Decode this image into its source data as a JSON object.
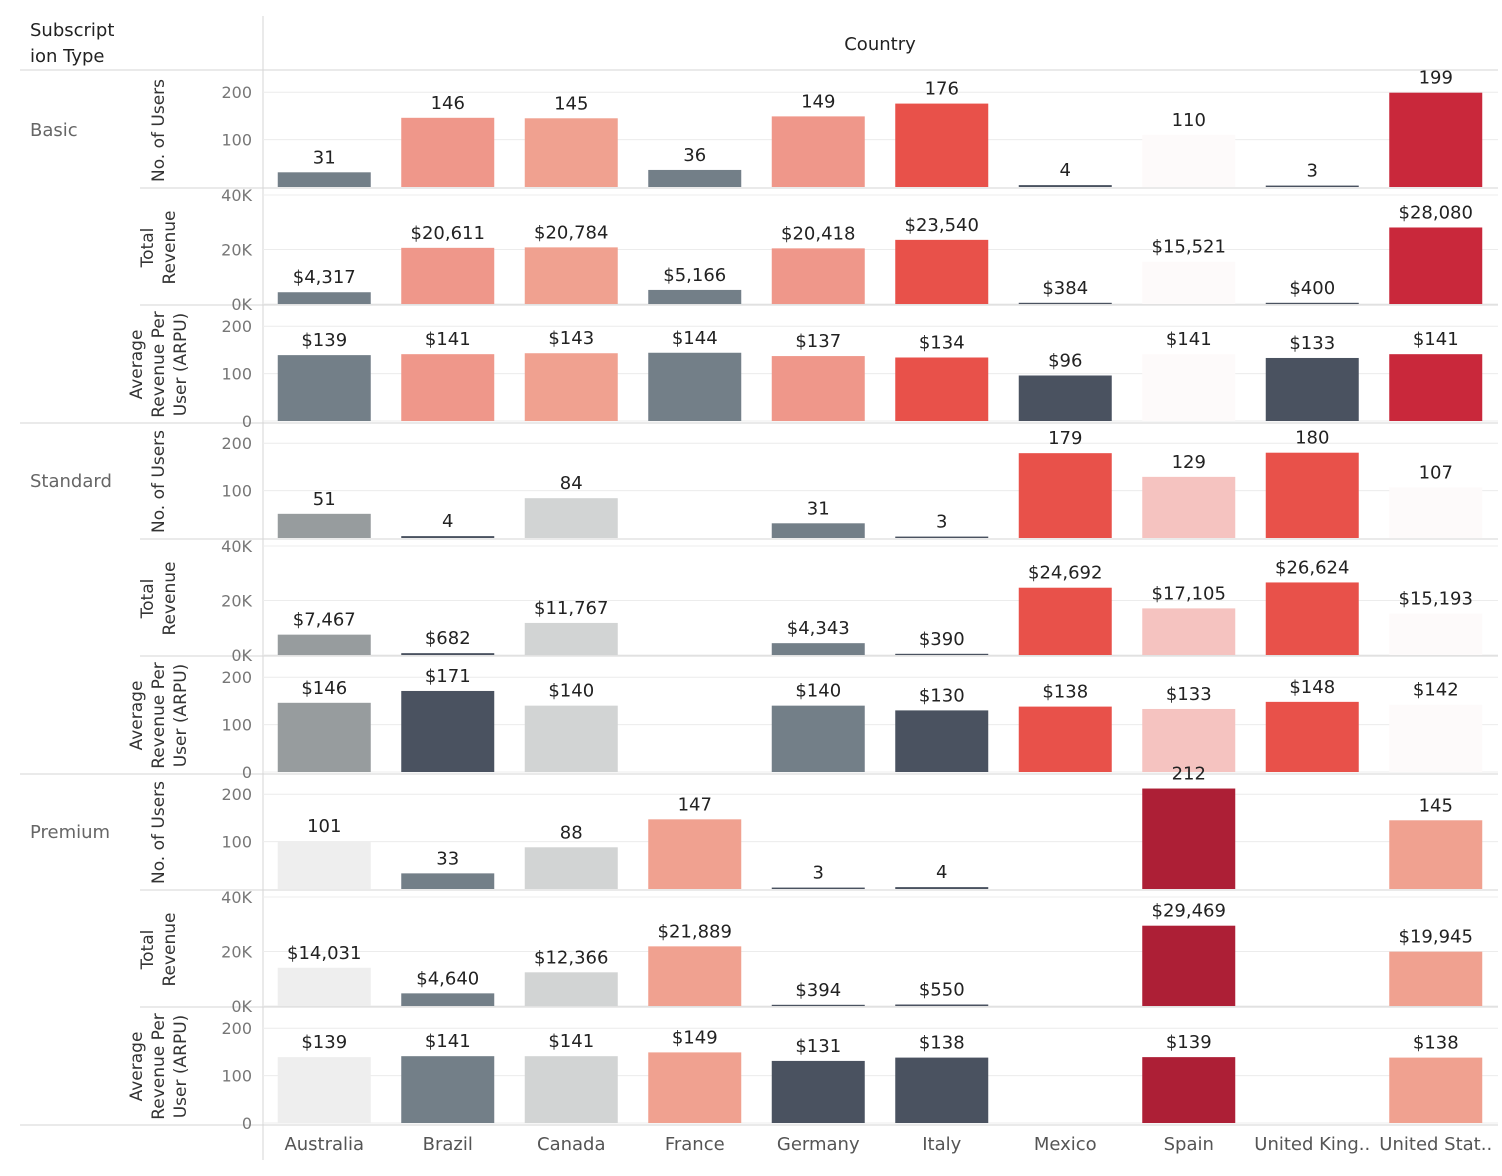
{
  "chart_data": {
    "type": "bar",
    "row_header": "Subscription Type",
    "row_header_lines": [
      "Subscript",
      "ion Type"
    ],
    "column_header": "Country",
    "categories": [
      "Australia",
      "Brazil",
      "Canada",
      "France",
      "Germany",
      "Italy",
      "Mexico",
      "Spain",
      "United King..",
      "United Stat.."
    ],
    "palette": {
      "dark": "#4a5260",
      "slate": "#737f88",
      "gray": "#979c9e",
      "light": "#d2d4d4",
      "lightest": "#eeeeee",
      "faint": "#fdfafa",
      "pale_pink": "#f5c3c0",
      "salmon": "#f0a190",
      "coral": "#ef978a",
      "red": "#e8514a",
      "crimson": "#c9283b",
      "maroon": "#ad1f36"
    },
    "measures": [
      {
        "key": "users",
        "label": "No. of Users",
        "label_lines": [
          "No. of Users"
        ],
        "ylim": [
          0,
          230
        ],
        "ticks": [
          {
            "v": 100,
            "t": "100"
          },
          {
            "v": 200,
            "t": "200"
          }
        ]
      },
      {
        "key": "revenue",
        "label": "Total Revenue",
        "label_lines": [
          "Total",
          "Revenue"
        ],
        "ylim": [
          0,
          40000
        ],
        "ticks": [
          {
            "v": 0,
            "t": "0K"
          },
          {
            "v": 20000,
            "t": "20K"
          },
          {
            "v": 40000,
            "t": "40K"
          }
        ]
      },
      {
        "key": "arpu",
        "label": "Average Revenue Per User (ARPU)",
        "label_lines": [
          "Average",
          "Revenue Per",
          "User (ARPU)"
        ],
        "ylim": [
          0,
          230
        ],
        "ticks": [
          {
            "v": 0,
            "t": "0"
          },
          {
            "v": 100,
            "t": "100"
          },
          {
            "v": 200,
            "t": "200"
          }
        ]
      }
    ],
    "segments": [
      {
        "name": "Basic",
        "colors": [
          "slate",
          "coral",
          "salmon",
          "slate",
          "coral",
          "red",
          "dark",
          "faint",
          "dark",
          "crimson"
        ],
        "users": [
          31,
          146,
          145,
          36,
          149,
          176,
          4,
          110,
          3,
          199
        ],
        "users_labels": [
          "31",
          "146",
          "145",
          "36",
          "149",
          "176",
          "4",
          "110",
          "3",
          "199"
        ],
        "revenue": [
          4317,
          20611,
          20784,
          5166,
          20418,
          23540,
          384,
          15521,
          400,
          28080
        ],
        "revenue_labels": [
          "$4,317",
          "$20,611",
          "$20,784",
          "$5,166",
          "$20,418",
          "$23,540",
          "$384",
          "$15,521",
          "$400",
          "$28,080"
        ],
        "arpu": [
          139,
          141,
          143,
          144,
          137,
          134,
          96,
          141,
          133,
          141
        ],
        "arpu_labels": [
          "$139",
          "$141",
          "$143",
          "$144",
          "$137",
          "$134",
          "$96",
          "$141",
          "$133",
          "$141"
        ]
      },
      {
        "name": "Standard",
        "colors": [
          "gray",
          "dark",
          "light",
          null,
          "slate",
          "dark",
          "red",
          "pale_pink",
          "red",
          "faint"
        ],
        "users": [
          51,
          4,
          84,
          null,
          31,
          3,
          179,
          129,
          180,
          107
        ],
        "users_labels": [
          "51",
          "4",
          "84",
          "",
          "31",
          "3",
          "179",
          "129",
          "180",
          "107"
        ],
        "revenue": [
          7467,
          682,
          11767,
          null,
          4343,
          390,
          24692,
          17105,
          26624,
          15193
        ],
        "revenue_labels": [
          "$7,467",
          "$682",
          "$11,767",
          "",
          "$4,343",
          "$390",
          "$24,692",
          "$17,105",
          "$26,624",
          "$15,193"
        ],
        "arpu": [
          146,
          171,
          140,
          null,
          140,
          130,
          138,
          133,
          148,
          142
        ],
        "arpu_labels": [
          "$146",
          "$171",
          "$140",
          "",
          "$140",
          "$130",
          "$138",
          "$133",
          "$148",
          "$142"
        ]
      },
      {
        "name": "Premium",
        "colors": [
          "lightest",
          "slate",
          "light",
          "salmon",
          "dark",
          "dark",
          null,
          "maroon",
          null,
          "salmon"
        ],
        "users": [
          101,
          33,
          88,
          147,
          3,
          4,
          null,
          212,
          null,
          145
        ],
        "users_labels": [
          "101",
          "33",
          "88",
          "147",
          "3",
          "4",
          "",
          "212",
          "",
          "145"
        ],
        "revenue": [
          14031,
          4640,
          12366,
          21889,
          394,
          550,
          null,
          29469,
          null,
          19945
        ],
        "revenue_labels": [
          "$14,031",
          "$4,640",
          "$12,366",
          "$21,889",
          "$394",
          "$550",
          "",
          "$29,469",
          "",
          "$19,945"
        ],
        "arpu": [
          139,
          141,
          141,
          149,
          131,
          138,
          null,
          139,
          null,
          138
        ],
        "arpu_labels": [
          "$139",
          "$141",
          "$141",
          "$149",
          "$131",
          "$138",
          "",
          "$139",
          "",
          "$138"
        ]
      }
    ]
  }
}
